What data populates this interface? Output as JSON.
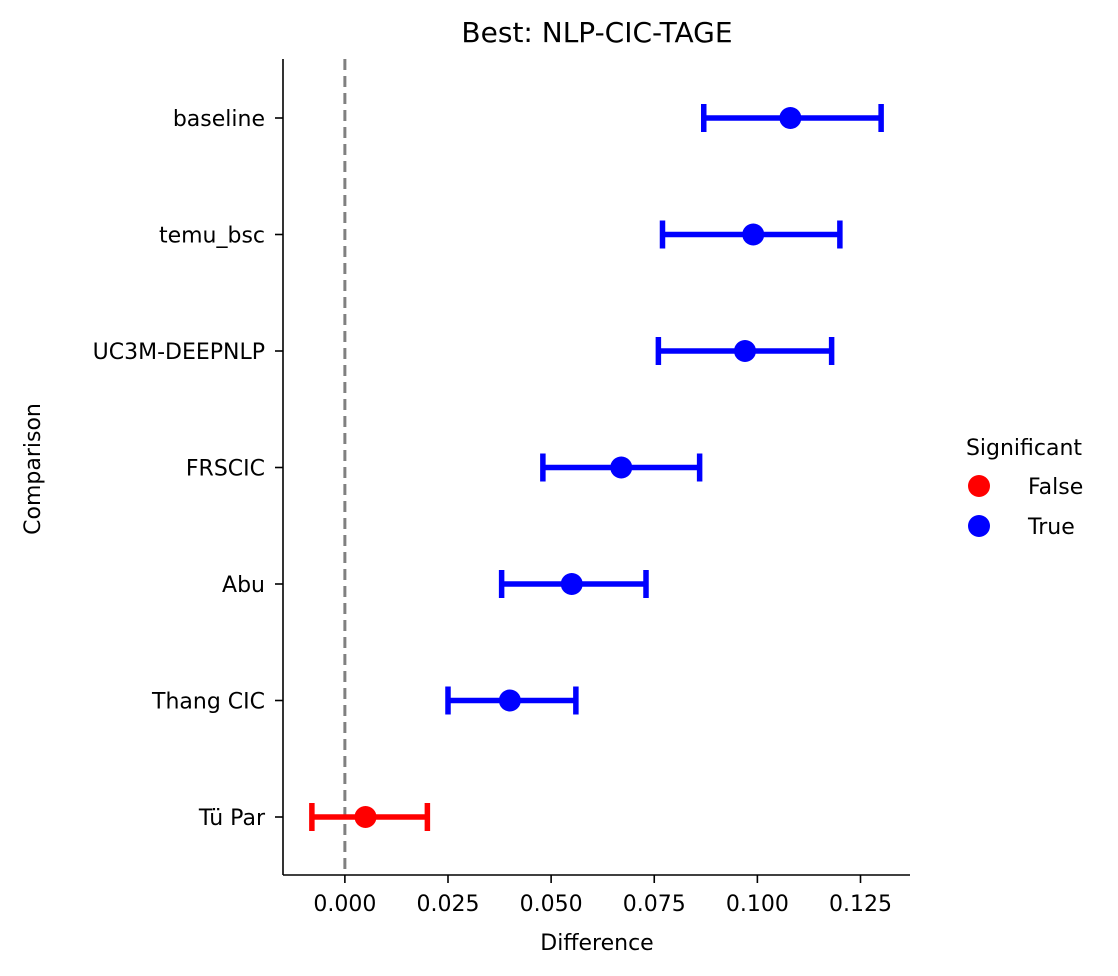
{
  "chart_data": {
    "type": "scatter",
    "title": "Best: NLP-CIC-TAGE",
    "xlabel": "Difference",
    "ylabel": "Comparison",
    "xlim": [
      -0.015,
      0.137
    ],
    "xticks": [
      "0.000",
      "0.025",
      "0.050",
      "0.075",
      "0.100",
      "0.125"
    ],
    "reference_line_x": 0,
    "categories": [
      "baseline",
      "temu_bsc",
      "UC3M-DEEPNLP",
      "FRSCIC",
      "Abu",
      "Thang CIC",
      "Tü Par"
    ],
    "points": [
      {
        "label": "baseline",
        "value": 0.108,
        "lower": 0.087,
        "upper": 0.13,
        "significant": "True"
      },
      {
        "label": "temu_bsc",
        "value": 0.099,
        "lower": 0.077,
        "upper": 0.12,
        "significant": "True"
      },
      {
        "label": "UC3M-DEEPNLP",
        "value": 0.097,
        "lower": 0.076,
        "upper": 0.118,
        "significant": "True"
      },
      {
        "label": "FRSCIC",
        "value": 0.067,
        "lower": 0.048,
        "upper": 0.086,
        "significant": "True"
      },
      {
        "label": "Abu",
        "value": 0.055,
        "lower": 0.038,
        "upper": 0.073,
        "significant": "True"
      },
      {
        "label": "Thang CIC",
        "value": 0.04,
        "lower": 0.025,
        "upper": 0.056,
        "significant": "True"
      },
      {
        "label": "Tü Par",
        "value": 0.005,
        "lower": -0.008,
        "upper": 0.02,
        "significant": "False"
      }
    ],
    "legend": {
      "title": "Significant",
      "placement": "right",
      "entries": [
        {
          "label": "False",
          "color": "#ff0000"
        },
        {
          "label": "True",
          "color": "#0000ff"
        }
      ]
    },
    "colors": {
      "False": "#ff0000",
      "True": "#0000ff",
      "reference_line": "#808080"
    }
  }
}
